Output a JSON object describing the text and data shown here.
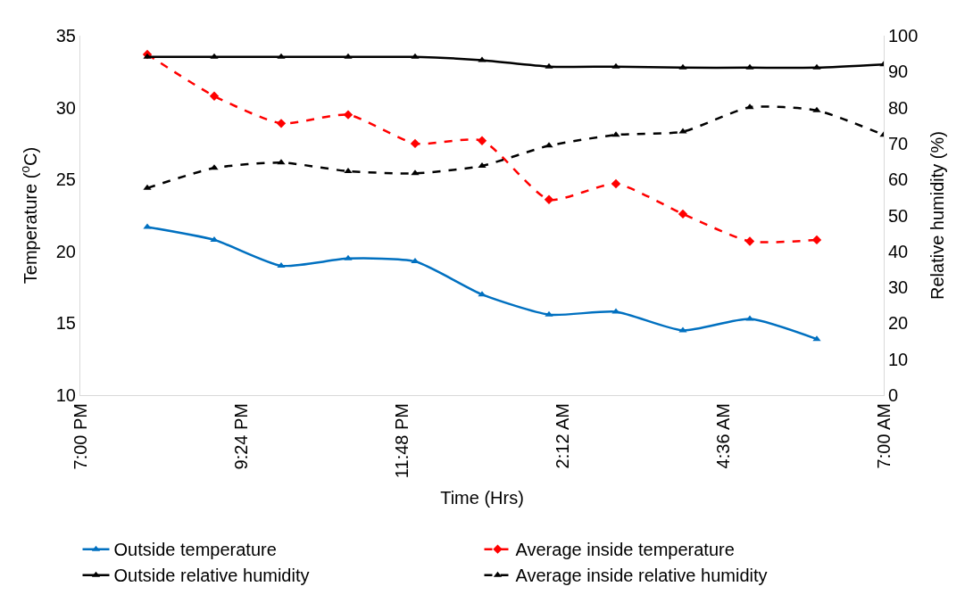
{
  "chart_data": {
    "type": "line",
    "xlabel": "Time (Hrs)",
    "ylabel": "Temperature ($^{o}$C)",
    "y2label": "Relative humidity (%)",
    "x": [
      "--01-01T20:00",
      "--01-01T21:00",
      "--01-01T22:00",
      "--01-01T23:00",
      "--01-02T00:00",
      "--01-02T01:00",
      "--01-02T02:00",
      "--01-02T03:00",
      "--01-02T04:00",
      "--01-02T05:00",
      "--01-02T06:00",
      "--01-02T07:00"
    ],
    "xlim": [
      "--01-01T19:00",
      "--01-02T07:00"
    ],
    "xticks": [
      {
        "value": "--01-01T19:00",
        "label": "7:00 PM"
      },
      {
        "value": "--01-01T21:24",
        "label": "9:24 PM"
      },
      {
        "value": "--01-01T23:48",
        "label": "11:48 PM"
      },
      {
        "value": "--01-02T02:12",
        "label": "2:12 AM"
      },
      {
        "value": "--01-02T04:36",
        "label": "4:36 AM"
      },
      {
        "value": "--01-02T07:00",
        "label": "7:00 AM"
      }
    ],
    "ylim": [
      10,
      35
    ],
    "yticks": [
      10,
      15,
      20,
      25,
      30,
      35
    ],
    "y2lim": [
      0,
      100
    ],
    "y2ticks": [
      0,
      10,
      20,
      30,
      40,
      50,
      60,
      70,
      80,
      90,
      100
    ],
    "grid": false,
    "legend": "bottom",
    "series": [
      {
        "name": "Outside temperature",
        "color": "#0070c0",
        "marker": "triangle",
        "line_style": "solid",
        "values": [
          21.7,
          20.8,
          19.0,
          19.5,
          19.3,
          17.0,
          15.6,
          15.8,
          14.5,
          15.3,
          13.9,
          null
        ]
      },
      {
        "name": "Average inside temperature",
        "color": "#ff0000",
        "marker": "diamond",
        "line_style": "dashed",
        "values": [
          33.7,
          30.8,
          28.9,
          29.5,
          27.5,
          27.7,
          23.6,
          24.7,
          22.6,
          20.7,
          20.8,
          null
        ]
      },
      {
        "name": "Outside relative humidity",
        "color": "#000000",
        "marker": "triangle",
        "line_style": "solid",
        "axis": "y2",
        "values": [
          94.1,
          94.1,
          94.1,
          94.1,
          94.1,
          93.2,
          91.4,
          91.4,
          91.1,
          91.1,
          91.1,
          92.0
        ]
      },
      {
        "name": "Average inside relative humidity",
        "color": "#000000",
        "marker": "triangle",
        "line_style": "dashed",
        "axis": "y2",
        "values": [
          57.6,
          63.2,
          64.7,
          62.3,
          61.7,
          63.8,
          69.4,
          72.4,
          73.3,
          80.1,
          79.2,
          72.4
        ]
      }
    ]
  }
}
